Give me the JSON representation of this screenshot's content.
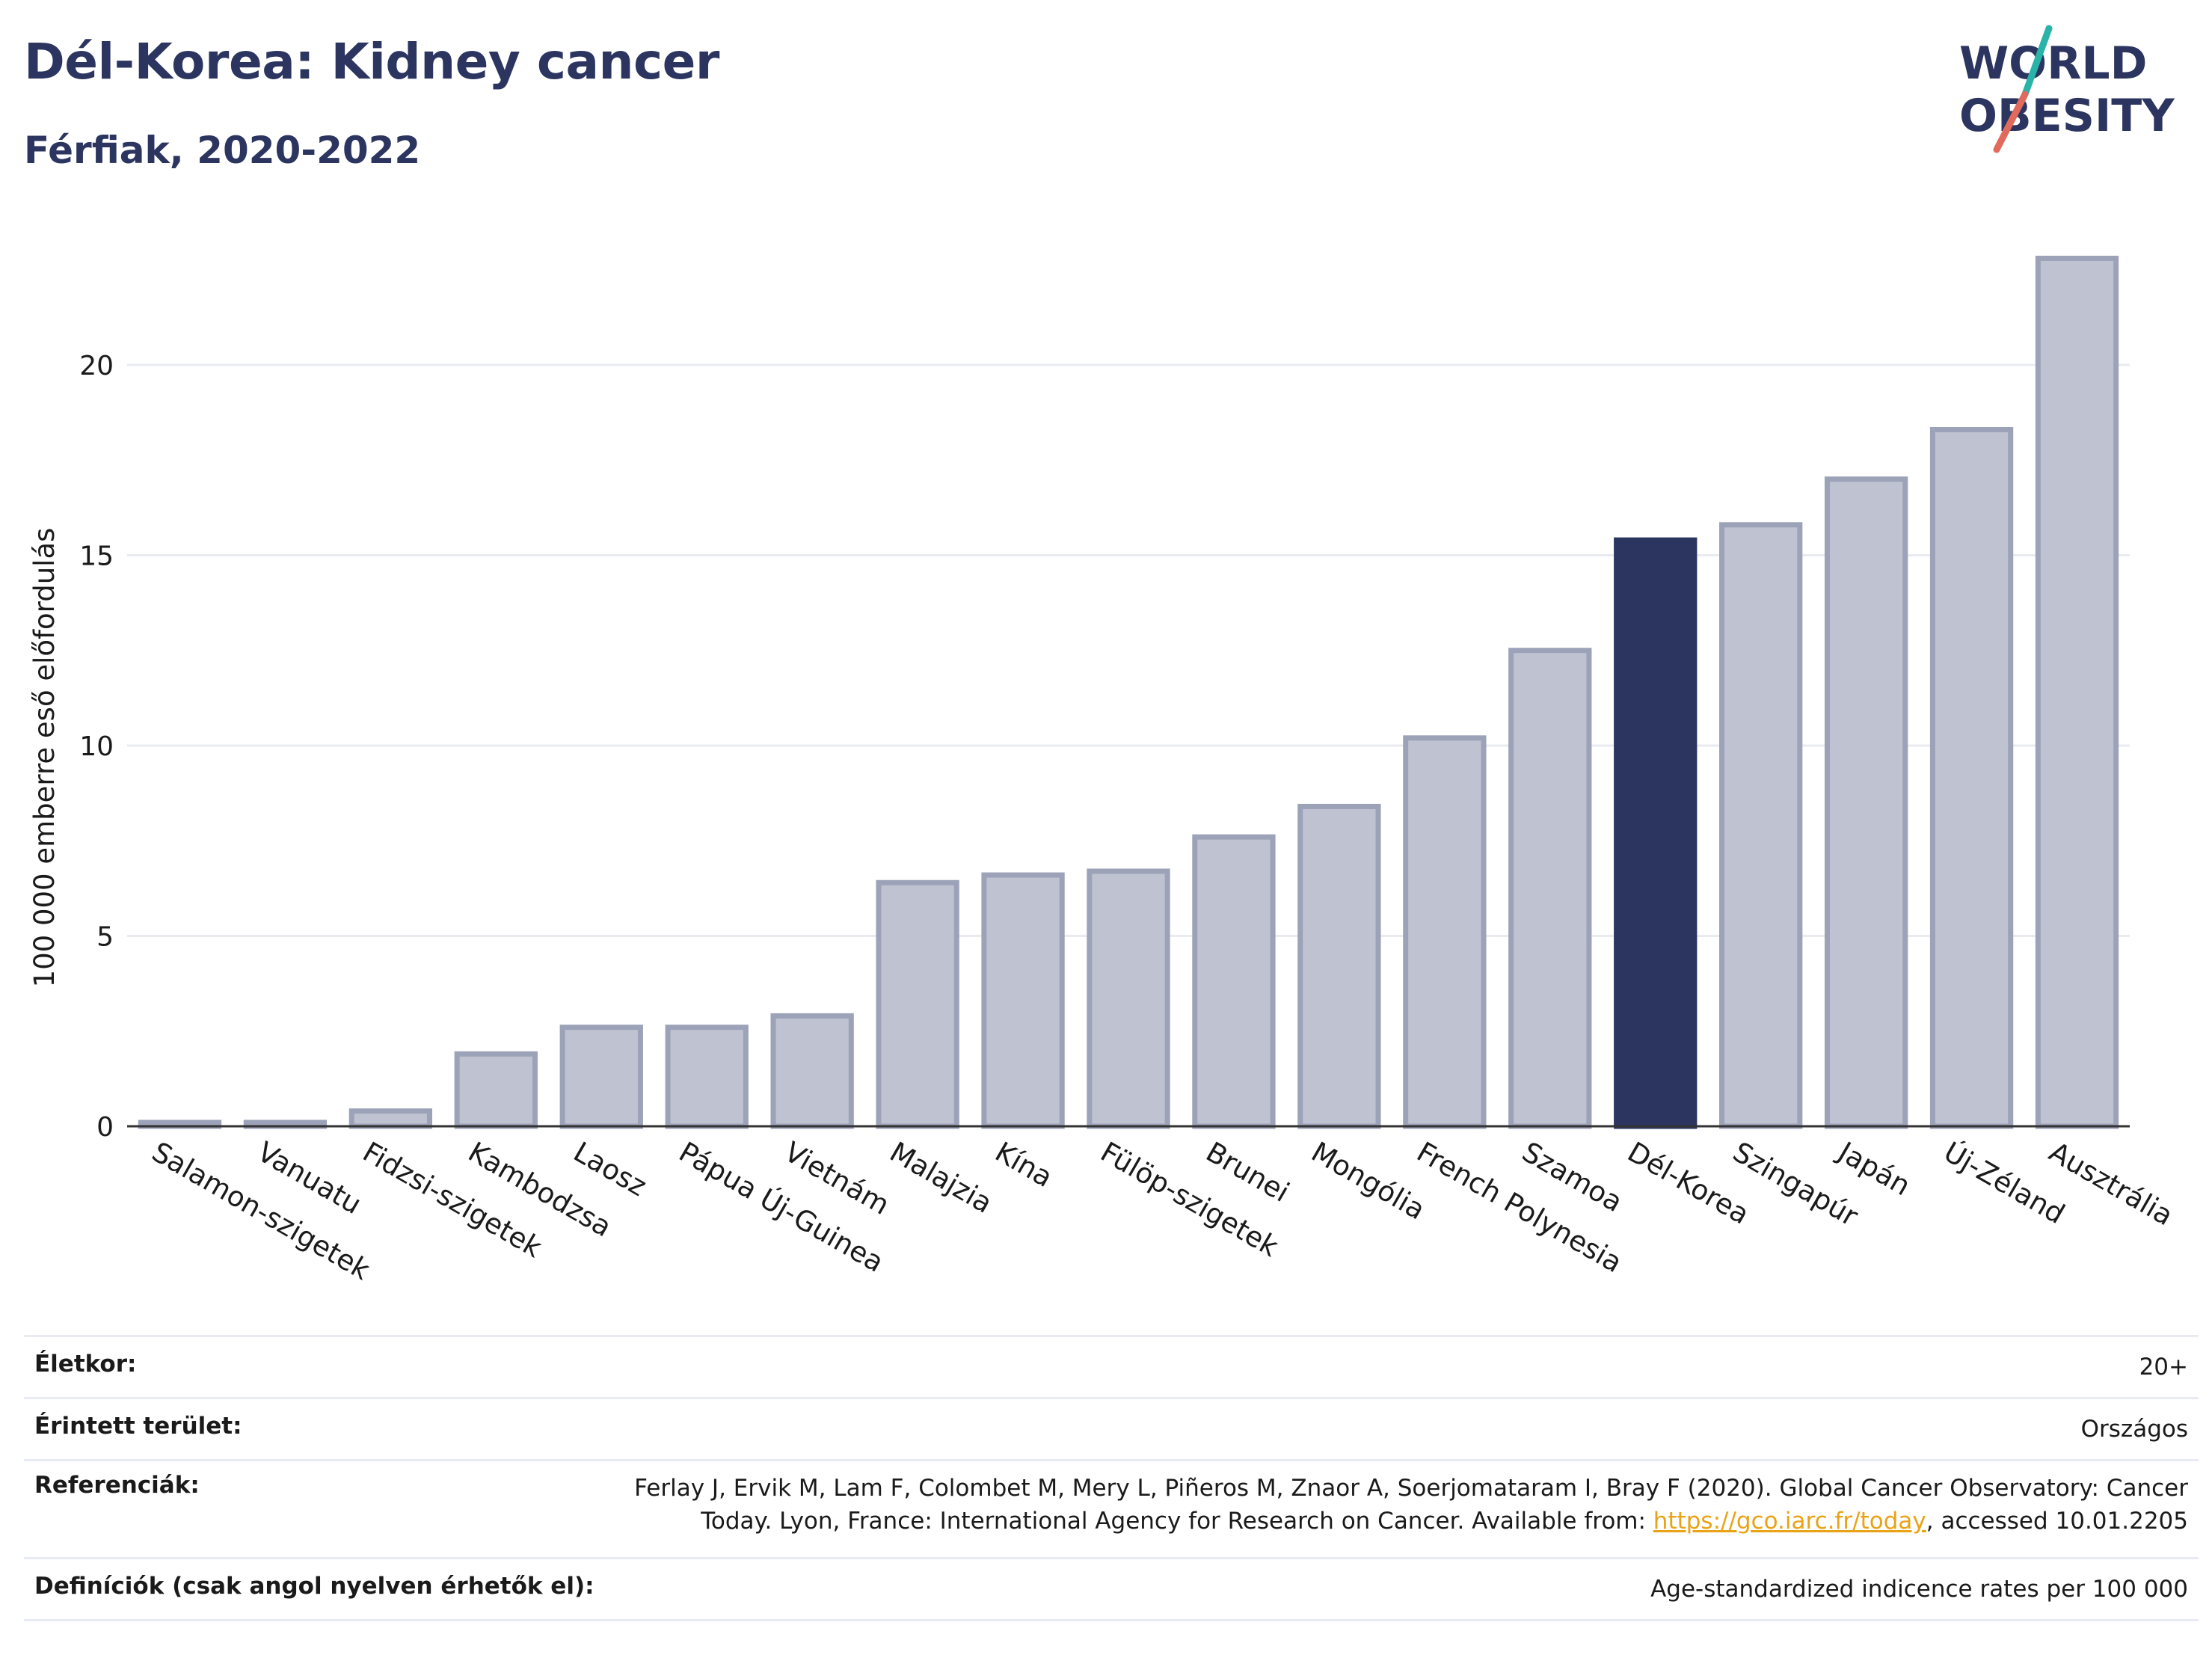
{
  "header": {
    "title": "Dél-Korea: Kidney cancer",
    "subtitle": "Férfiak, 2020-2022",
    "logo_line1": "WORLD",
    "logo_line2": "OBESITY"
  },
  "chart_data": {
    "type": "bar",
    "ylabel": "100 000 emberre eső előfordulás",
    "ylim": [
      0,
      23.3
    ],
    "yticks": [
      0,
      5,
      10,
      15,
      20
    ],
    "grid": true,
    "categories": [
      "Salamon-szigetek",
      "Vanuatu",
      "Fidzsi-szigetek",
      "Kambodzsa",
      "Laosz",
      "Pápua Új-Guinea",
      "Vietnám",
      "Malajzia",
      "Kína",
      "Fülöp-szigetek",
      "Brunei",
      "Mongólia",
      "French Polynesia",
      "Szamoa",
      "Dél-Korea",
      "Szingapúr",
      "Japán",
      "Új-Zéland",
      "Ausztrália"
    ],
    "values": [
      0.1,
      0.1,
      0.4,
      1.9,
      2.6,
      2.6,
      2.9,
      6.4,
      6.6,
      6.7,
      7.6,
      8.4,
      10.2,
      12.5,
      15.4,
      15.8,
      17.0,
      18.3,
      22.8
    ],
    "highlight": "Dél-Korea",
    "colors": {
      "bar": "#bfc3d1",
      "bar_border": "#9ca2b8",
      "highlight": "#2b3560",
      "grid": "#e9ebf0",
      "axis": "#333333"
    }
  },
  "info": {
    "age_label": "Életkor:",
    "age_value": "20+",
    "area_label": "Érintett terület:",
    "area_value": "Országos",
    "ref_label": "Referenciák:",
    "ref_line1": "Ferlay J, Ervik M, Lam F, Colombet M, Mery L, Piñeros M, Znaor A, Soerjomataram I, Bray F (2020). Global Cancer Observatory: Cancer",
    "ref_line2_pre": "Today. Lyon, France: International Agency for Research on Cancer. Available from: ",
    "ref_link": "https://gco.iarc.fr/today",
    "ref_line2_post": ", accessed 10.01.2205",
    "def_label": "Definíciók (csak angol nyelven érhetők el):",
    "def_value": "Age-standardized indicence rates per 100 000"
  }
}
